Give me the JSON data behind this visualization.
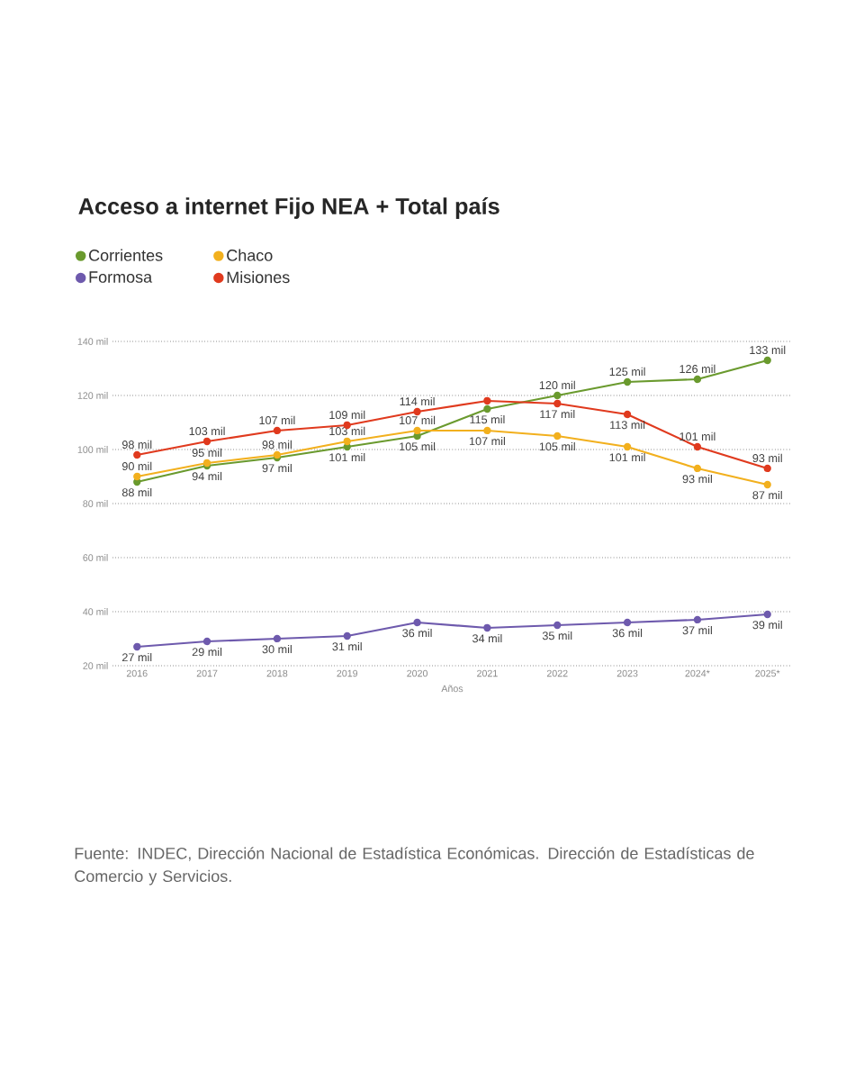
{
  "chart_data": {
    "type": "line",
    "title": "Acceso a internet Fijo NEA + Total país",
    "xlabel": "Años",
    "categories": [
      "2016",
      "2017",
      "2018",
      "2019",
      "2020",
      "2021",
      "2022",
      "2023",
      "2024*",
      "2025*"
    ],
    "series": [
      {
        "name": "Corrientes",
        "color": "#6a9a2e",
        "values": [
          88,
          94,
          97,
          101,
          105,
          115,
          120,
          125,
          126,
          133
        ],
        "value_labels": [
          "88 mil",
          "94 mil",
          "97 mil",
          "101 mil",
          "105 mil",
          "115 mil",
          "120 mil",
          "125 mil",
          "126 mil",
          "133 mil"
        ]
      },
      {
        "name": "Chaco",
        "color": "#f2b01e",
        "values": [
          90,
          95,
          98,
          103,
          107,
          107,
          105,
          101,
          93,
          87
        ],
        "value_labels": [
          "90 mil",
          "95 mil",
          "98 mil",
          "103 mil",
          "107 mil",
          "107 mil",
          "105 mil",
          "101 mil",
          "93 mil",
          "87 mil"
        ]
      },
      {
        "name": "Formosa",
        "color": "#6e5aad",
        "values": [
          27,
          29,
          30,
          31,
          36,
          34,
          35,
          36,
          37,
          39
        ],
        "value_labels": [
          "27 mil",
          "29 mil",
          "30 mil",
          "31 mil",
          "36 mil",
          "34 mil",
          "35 mil",
          "36 mil",
          "37 mil",
          "39 mil"
        ]
      },
      {
        "name": "Misiones",
        "color": "#e03a1e",
        "values": [
          98,
          103,
          107,
          109,
          114,
          118,
          117,
          113,
          101,
          93
        ],
        "value_labels": [
          "98 mil",
          "103 mil",
          "107 mil",
          "109 mil",
          "114 mil",
          null,
          "117 mil",
          "113 mil",
          "101 mil",
          "93 mil"
        ]
      }
    ],
    "ylim": [
      20,
      140
    ],
    "yticks": [
      {
        "value": 20,
        "label": "20 mil"
      },
      {
        "value": 40,
        "label": "40 mil"
      },
      {
        "value": 60,
        "label": "60 mil"
      },
      {
        "value": 80,
        "label": "80 mil"
      },
      {
        "value": 100,
        "label": "100 mil"
      },
      {
        "value": 120,
        "label": "120 mil"
      },
      {
        "value": 140,
        "label": "140 mil"
      }
    ],
    "grid": "y",
    "legend": "top left",
    "marker": "circle",
    "line_style": "solid",
    "annotations": [
      "Fuente: INDEC, Dirección Nacional de Estadística Económicas. Dirección de Estadísticas de Comercio y Servicios."
    ]
  }
}
